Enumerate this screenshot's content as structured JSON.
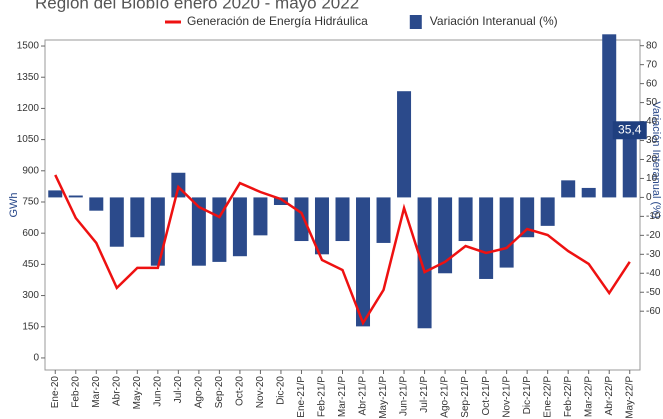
{
  "chart_data": {
    "type": "bar-line",
    "title": "Región del Biobío enero 2020 - mayo 2022",
    "y_label": "GWh",
    "y2_label": "Variación Interanual (%)",
    "categories": [
      "Ene-20",
      "Feb-20",
      "Mar-20",
      "Abr-20",
      "May-20",
      "Jun-20",
      "Jul-20",
      "Ago-20",
      "Sep-20",
      "Oct-20",
      "Nov-20",
      "Dic-20",
      "Ene-21/P",
      "Feb-21/P",
      "Mar-21/P",
      "Abr-21/P",
      "May-21/P",
      "Jun-21/P",
      "Jul-21/P",
      "Ago-21/P",
      "Sep-21/P",
      "Oct-21/P",
      "Nov-21/P",
      "Dic-21/P",
      "Ene-22/P",
      "Feb-22/P",
      "Mar-22/P",
      "Abr-22/P",
      "May-22/P"
    ],
    "series": [
      {
        "name": "Generación de Energía Hidráulica",
        "type": "line",
        "color": "#ee1111",
        "values": [
          880,
          673,
          553,
          337,
          433,
          433,
          822,
          726,
          678,
          841,
          798,
          764,
          697,
          471,
          423,
          168,
          327,
          721,
          413,
          462,
          538,
          505,
          529,
          620,
          591,
          514,
          452,
          312,
          462
        ]
      },
      {
        "name": "Variación Interanual (%)",
        "type": "bar",
        "axis": "y2",
        "color": "#2b4a8b",
        "values": [
          3.7,
          1,
          -7,
          -26,
          -21,
          -36,
          13,
          -36,
          -34,
          -31,
          -20,
          -4,
          -23,
          -30,
          -23,
          -68,
          -24,
          56,
          -69,
          -40,
          -23,
          -43,
          -37,
          -21,
          -15,
          9,
          5,
          86,
          35.4
        ],
        "value_labels": [
          null,
          null,
          null,
          null,
          null,
          null,
          null,
          null,
          null,
          null,
          null,
          null,
          null,
          null,
          null,
          null,
          null,
          null,
          null,
          null,
          null,
          null,
          null,
          null,
          null,
          null,
          null,
          null,
          "35,4"
        ]
      }
    ],
    "ylim": [
      -58,
      1529
    ],
    "yticks": [
      0,
      150,
      300,
      450,
      600,
      750,
      900,
      1050,
      1200,
      1350,
      1500
    ],
    "y2lim": [
      -91,
      83
    ],
    "y2ticks": [
      -60,
      -50,
      -40,
      -30,
      -20,
      -10,
      0,
      10,
      20,
      30,
      40,
      50,
      60,
      70,
      80
    ],
    "grid": false,
    "legend": "top"
  }
}
